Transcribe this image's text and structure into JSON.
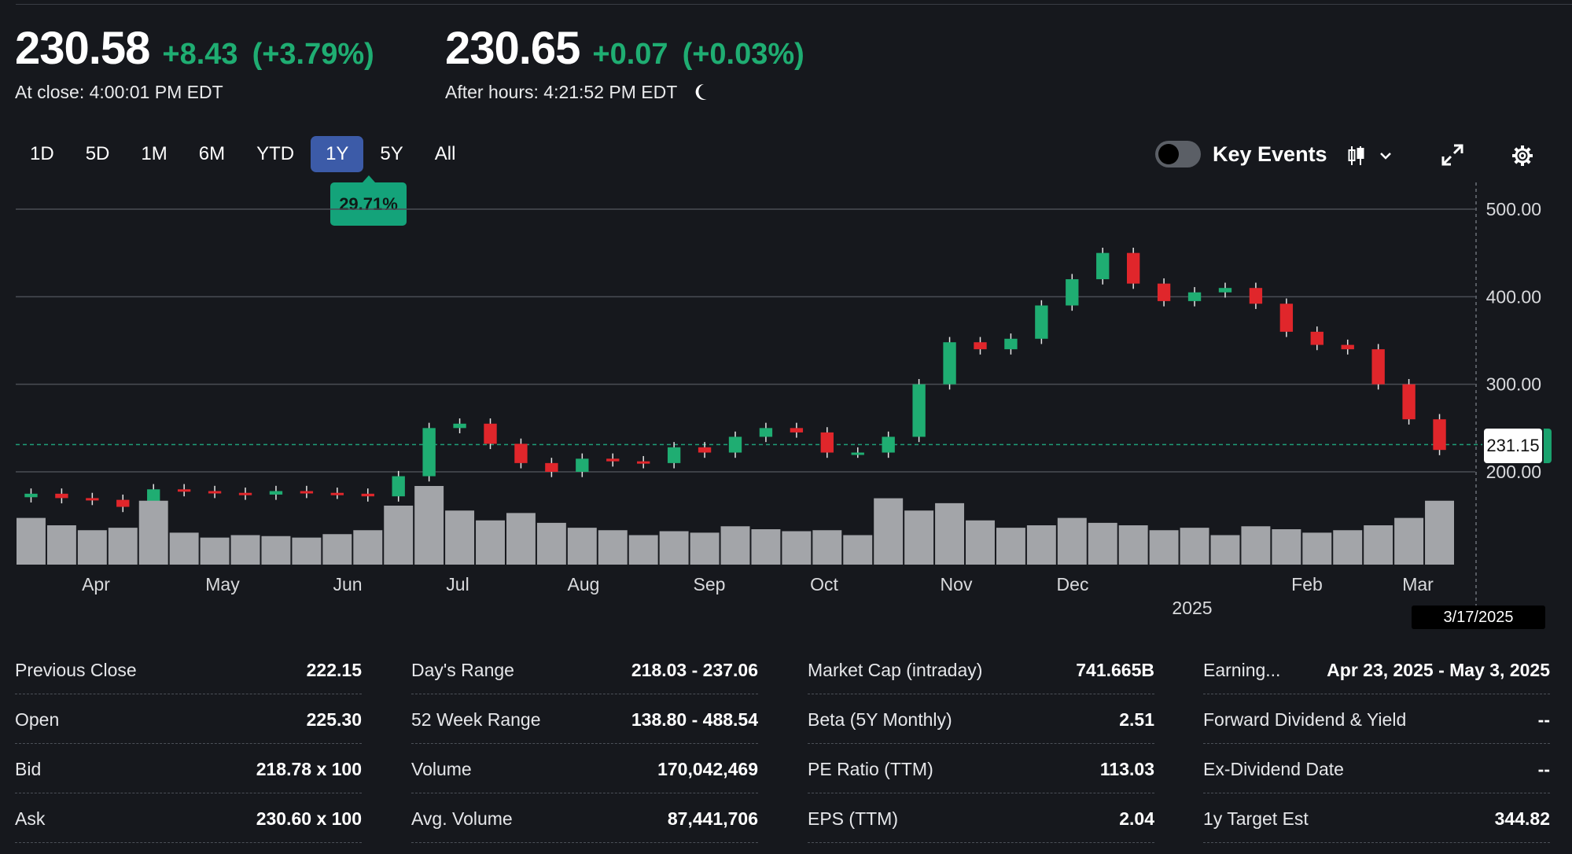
{
  "quote": {
    "close_price": "230.58",
    "close_change": "+8.43",
    "close_change_pct": "(+3.79%)",
    "close_time": "At close: 4:00:01 PM EDT",
    "after_price": "230.65",
    "after_change": "+0.07",
    "after_change_pct": "(+0.03%)",
    "after_time": "After hours: 4:21:52 PM EDT"
  },
  "toolbar": {
    "ranges": [
      "1D",
      "5D",
      "1M",
      "6M",
      "YTD",
      "1Y",
      "5Y",
      "All"
    ],
    "active_range": "1Y",
    "range_performance": "29.71%",
    "key_events_label": "Key Events",
    "key_events_on": false,
    "chart_type_icon": "candlestick-icon",
    "expand_icon": "expand-icon",
    "settings_icon": "gear-icon"
  },
  "colors": {
    "up": "#1fad72",
    "down": "#e0262b",
    "background": "#16181d",
    "volume": "#a3a5a9",
    "active_range": "#3c5ba8"
  },
  "chart_data": {
    "type": "candlestick",
    "title": "",
    "xlabel": "",
    "ylabel": "",
    "ylim": [
      90,
      520
    ],
    "y_ticks": [
      500,
      400,
      300,
      200
    ],
    "y_tick_labels": [
      "500.00",
      "400.00",
      "300.00",
      "200.00"
    ],
    "x_tick_labels": [
      "Apr",
      "May",
      "Jun",
      "Jul",
      "Aug",
      "Sep",
      "Oct",
      "Nov",
      "Dec",
      "Feb",
      "Mar"
    ],
    "x_year_label": "2025",
    "last_price_label": "231.15",
    "last_price": 231.15,
    "crosshair_date": "3/17/2025",
    "grid": true,
    "series": [
      {
        "kind": "candles",
        "x": [
          "Apr 2024",
          "Apr 2024",
          "Apr 2024",
          "Apr 2024",
          "May 2024",
          "May 2024",
          "May 2024",
          "May 2024",
          "Jun 2024",
          "Jun 2024",
          "Jun 2024",
          "Jun 2024",
          "Jul 2024",
          "Jul 2024",
          "Jul 2024",
          "Jul 2024",
          "Aug 2024",
          "Aug 2024",
          "Aug 2024",
          "Aug 2024",
          "Sep 2024",
          "Sep 2024",
          "Sep 2024",
          "Sep 2024",
          "Oct 2024",
          "Oct 2024",
          "Oct 2024",
          "Oct 2024",
          "Nov 2024",
          "Nov 2024",
          "Nov 2024",
          "Nov 2024",
          "Dec 2024",
          "Dec 2024",
          "Dec 2024",
          "Dec 2024",
          "Jan 2025",
          "Jan 2025",
          "Jan 2025",
          "Jan 2025",
          "Feb 2025",
          "Feb 2025",
          "Feb 2025",
          "Feb 2025",
          "Mar 2025",
          "Mar 2025",
          "Mar 2025"
        ],
        "close": [
          175,
          170,
          168,
          160,
          180,
          178,
          176,
          174,
          178,
          176,
          175,
          172,
          195,
          250,
          255,
          232,
          210,
          200,
          215,
          212,
          210,
          228,
          222,
          240,
          250,
          245,
          222,
          222,
          240,
          300,
          348,
          340,
          352,
          390,
          420,
          450,
          415,
          395,
          405,
          410,
          392,
          360,
          345,
          340,
          300,
          260,
          225
        ]
      },
      {
        "kind": "volume",
        "values": [
          95,
          80,
          70,
          75,
          130,
          65,
          55,
          60,
          58,
          55,
          62,
          70,
          120,
          160,
          110,
          90,
          105,
          85,
          75,
          70,
          60,
          68,
          65,
          78,
          72,
          68,
          70,
          60,
          135,
          110,
          125,
          90,
          75,
          80,
          95,
          85,
          80,
          70,
          75,
          60,
          78,
          72,
          65,
          70,
          80,
          95,
          130
        ]
      }
    ]
  },
  "stats": [
    [
      {
        "label": "Previous Close",
        "value": "222.15"
      },
      {
        "label": "Open",
        "value": "225.30"
      },
      {
        "label": "Bid",
        "value": "218.78 x 100"
      },
      {
        "label": "Ask",
        "value": "230.60 x 100"
      }
    ],
    [
      {
        "label": "Day's Range",
        "value": "218.03 - 237.06"
      },
      {
        "label": "52 Week Range",
        "value": "138.80 - 488.54"
      },
      {
        "label": "Volume",
        "value": "170,042,469"
      },
      {
        "label": "Avg. Volume",
        "value": "87,441,706"
      }
    ],
    [
      {
        "label": "Market Cap (intraday)",
        "value": "741.665B"
      },
      {
        "label": "Beta (5Y Monthly)",
        "value": "2.51"
      },
      {
        "label": "PE Ratio (TTM)",
        "value": "113.03"
      },
      {
        "label": "EPS (TTM)",
        "value": "2.04"
      }
    ],
    [
      {
        "label": "Earning...",
        "value": "Apr 23, 2025 - May 3, 2025"
      },
      {
        "label": "Forward Dividend & Yield",
        "value": "--"
      },
      {
        "label": "Ex-Dividend Date",
        "value": "--"
      },
      {
        "label": "1y Target Est",
        "value": "344.82"
      }
    ]
  ]
}
